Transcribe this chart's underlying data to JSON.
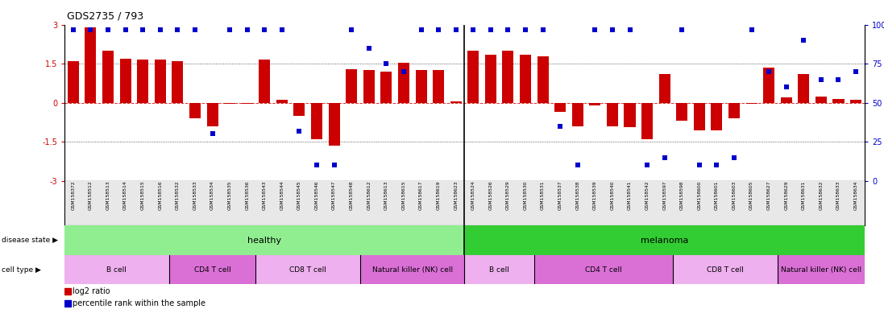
{
  "title": "GDS2735 / 793",
  "samples": [
    "GSM158372",
    "GSM158512",
    "GSM158513",
    "GSM158514",
    "GSM158515",
    "GSM158516",
    "GSM158532",
    "GSM158533",
    "GSM158534",
    "GSM158535",
    "GSM158536",
    "GSM158543",
    "GSM158544",
    "GSM158545",
    "GSM158546",
    "GSM158547",
    "GSM158548",
    "GSM158612",
    "GSM158613",
    "GSM158615",
    "GSM158617",
    "GSM158619",
    "GSM158623",
    "GSM158524",
    "GSM158526",
    "GSM158529",
    "GSM158530",
    "GSM158531",
    "GSM158537",
    "GSM158538",
    "GSM158539",
    "GSM158540",
    "GSM158541",
    "GSM158542",
    "GSM158597",
    "GSM158598",
    "GSM158600",
    "GSM158601",
    "GSM158603",
    "GSM158605",
    "GSM158627",
    "GSM158629",
    "GSM158631",
    "GSM158632",
    "GSM158633",
    "GSM158634"
  ],
  "log2_ratio": [
    1.6,
    2.9,
    2.0,
    1.7,
    1.65,
    1.65,
    1.6,
    -0.6,
    -0.9,
    -0.05,
    -0.05,
    1.65,
    0.1,
    -0.5,
    -1.4,
    -1.65,
    1.3,
    1.25,
    1.2,
    1.55,
    1.25,
    1.25,
    0.05,
    2.0,
    1.85,
    2.0,
    1.85,
    1.8,
    -0.35,
    -0.9,
    -0.1,
    -0.9,
    -0.95,
    -1.4,
    1.1,
    -0.7,
    -1.05,
    -1.05,
    -0.6,
    -0.05,
    1.35,
    0.2,
    1.1,
    0.25,
    0.15,
    0.1
  ],
  "percentile": [
    97,
    97,
    97,
    97,
    97,
    97,
    97,
    97,
    30,
    97,
    97,
    97,
    97,
    32,
    10,
    10,
    97,
    85,
    75,
    70,
    97,
    97,
    97,
    97,
    97,
    97,
    97,
    97,
    35,
    10,
    97,
    97,
    97,
    10,
    15,
    97,
    10,
    10,
    15,
    97,
    70,
    60,
    90,
    65,
    65,
    70
  ],
  "disease_state_groups": [
    {
      "label": "healthy",
      "start": 0,
      "end": 23,
      "color": "#90EE90"
    },
    {
      "label": "melanoma",
      "start": 23,
      "end": 46,
      "color": "#32CD32"
    }
  ],
  "cell_type_groups": [
    {
      "label": "B cell",
      "start": 0,
      "end": 6,
      "color": "#EEB0EE"
    },
    {
      "label": "CD4 T cell",
      "start": 6,
      "end": 11,
      "color": "#DA70D6"
    },
    {
      "label": "CD8 T cell",
      "start": 11,
      "end": 17,
      "color": "#EEB0EE"
    },
    {
      "label": "Natural killer (NK) cell",
      "start": 17,
      "end": 23,
      "color": "#DA70D6"
    },
    {
      "label": "B cell",
      "start": 23,
      "end": 27,
      "color": "#EEB0EE"
    },
    {
      "label": "CD4 T cell",
      "start": 27,
      "end": 35,
      "color": "#DA70D6"
    },
    {
      "label": "CD8 T cell",
      "start": 35,
      "end": 41,
      "color": "#EEB0EE"
    },
    {
      "label": "Natural killer (NK) cell",
      "start": 41,
      "end": 46,
      "color": "#DA70D6"
    }
  ],
  "bar_color": "#CC0000",
  "dot_color": "#0000CC",
  "ylim": [
    -3.0,
    3.0
  ],
  "yticks_left": [
    -3,
    -1.5,
    0,
    1.5,
    3
  ],
  "right_ytick_pcts": [
    0,
    25,
    50,
    75,
    100
  ],
  "bar_width": 0.65,
  "bg_color": "#FFFFFF",
  "xtick_bg": "#E8E8E8",
  "hline0_color": "#CC0000",
  "hline_dot_color": "#333333",
  "divider_color": "#000000"
}
